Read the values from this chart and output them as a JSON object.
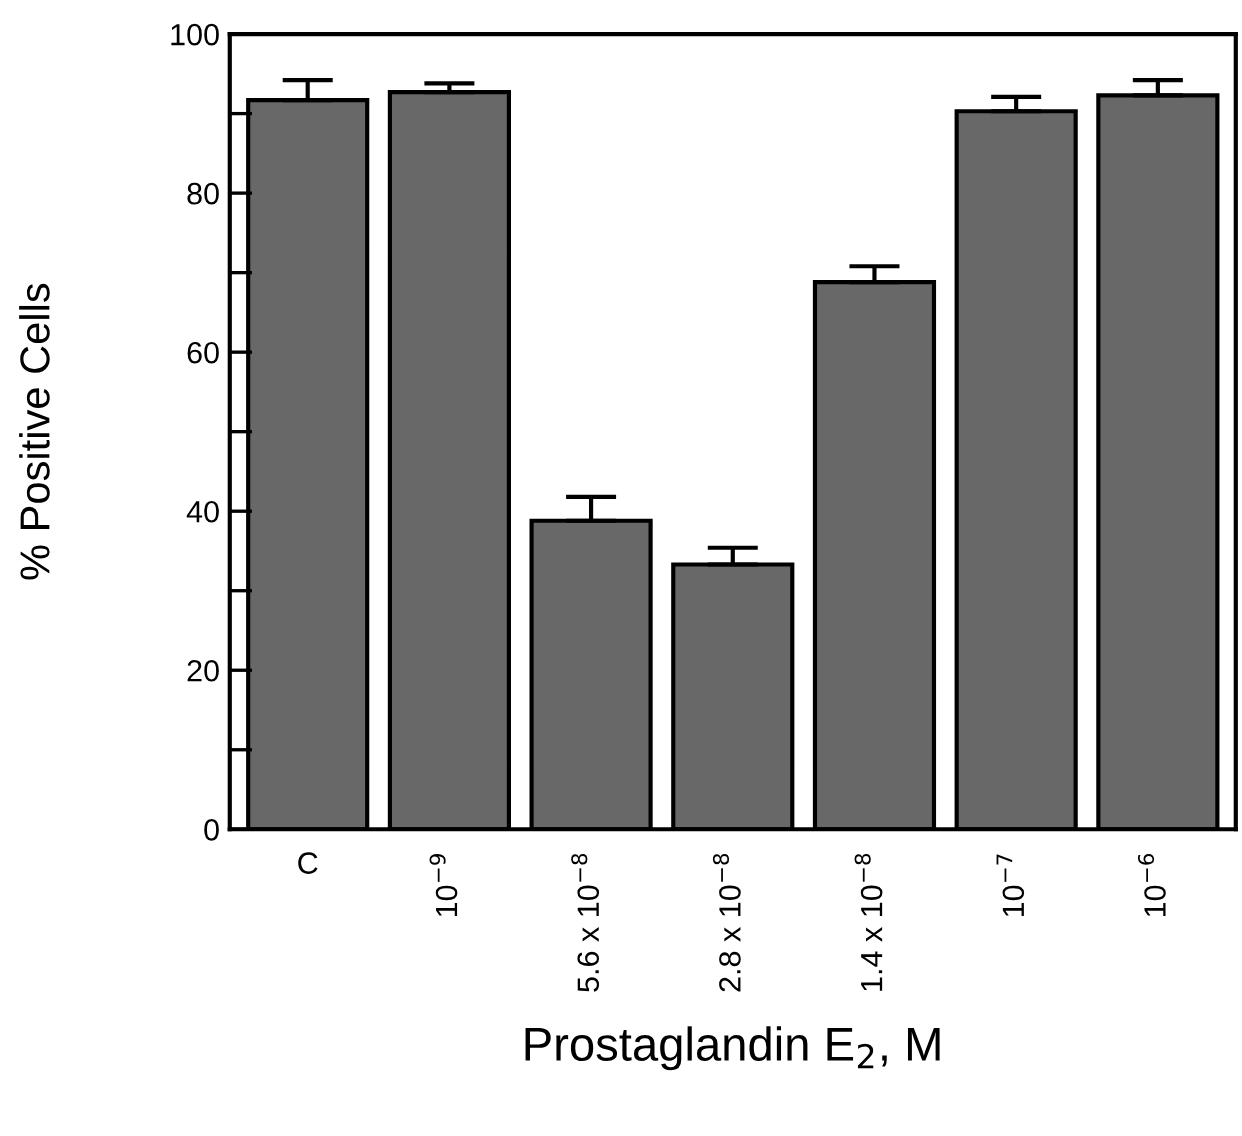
{
  "chart_data": {
    "type": "bar",
    "xlabel": "Prostaglandin E$_{2}$, M",
    "ylabel": "% Positive Cells",
    "categories": [
      "C",
      "10$^{−9}$",
      "5.6 x 10$^{−8}$",
      "2.8 x 10$^{−8}$",
      "1.4 x 10$^{−8}$",
      "10$^{−7}$",
      "10$^{−6}$"
    ],
    "values": [
      91.7,
      92.7,
      38.8,
      33.3,
      68.8,
      90.3,
      92.3
    ],
    "errors": [
      [
        91.7,
        94.2
      ],
      [
        92.7,
        93.8
      ],
      [
        38.8,
        41.8
      ],
      [
        33.3,
        35.4
      ],
      [
        68.8,
        70.8
      ],
      [
        90.3,
        92.1
      ],
      [
        92.3,
        94.2
      ]
    ],
    "color": "#686868",
    "ylim": [
      0,
      100
    ],
    "yticks": [
      0,
      {
        "value": 10,
        "label": null
      },
      20,
      {
        "value": 30,
        "label": null
      },
      40,
      {
        "value": 50,
        "label": null
      },
      60,
      {
        "value": 70,
        "label": null
      },
      80,
      {
        "value": 90,
        "label": null
      },
      100
    ],
    "grid": false
  }
}
